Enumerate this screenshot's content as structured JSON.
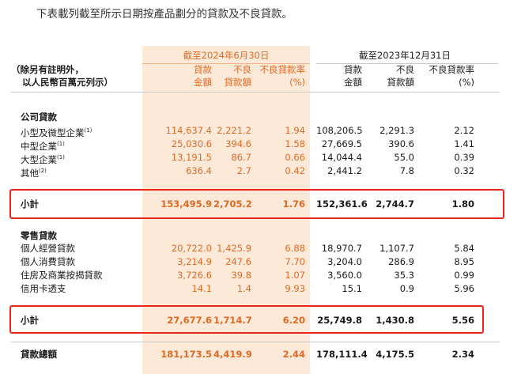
{
  "intro": "下表載列截至所示日期按產品劃分的貸款及不良貸款。",
  "header": {
    "period1": "截至2024年6月30日",
    "period2": "截至2023年12月31日",
    "rowhead_line1": "（除另有註明外，",
    "rowhead_line2": "以人民幣百萬元列示）",
    "col_loan_l1": "貸款",
    "col_loan_l2": "金額",
    "col_npl_l1": "不良",
    "col_npl_l2": "貸款額",
    "col_ratio_l1": "不良貸款率",
    "col_ratio_l2": "(%)",
    "col_loan2": "貸款",
    "col_loan2_b": "金額",
    "col_npl2": "不良",
    "col_npl2_b": "貸款額",
    "col_ratio2": "不良貸款率",
    "col_ratio2_b": "(%)"
  },
  "corporate": {
    "title": "公司貸款",
    "rows": [
      {
        "label": "小型及微型企業",
        "note": "(1)",
        "v": [
          "114,637.4",
          "2,221.2",
          "1.94",
          "108,206.5",
          "2,291.3",
          "2.12"
        ]
      },
      {
        "label": "中型企業",
        "note": "(1)",
        "v": [
          "25,030.6",
          "394.6",
          "1.58",
          "27,669.5",
          "390.6",
          "1.41"
        ]
      },
      {
        "label": "大型企業",
        "note": "(1)",
        "v": [
          "13,191.5",
          "86.7",
          "0.66",
          "14,044.4",
          "55.0",
          "0.39"
        ]
      },
      {
        "label": "其他",
        "note": "(2)",
        "v": [
          "636.4",
          "2.7",
          "0.42",
          "2,441.2",
          "7.8",
          "0.32"
        ]
      }
    ],
    "subtotal": {
      "label": "小計",
      "v": [
        "153,495.9",
        "2,705.2",
        "1.76",
        "152,361.6",
        "2,744.7",
        "1.80"
      ]
    }
  },
  "retail": {
    "title": "零售貸款",
    "rows": [
      {
        "label": "個人經營貸款",
        "v": [
          "20,722.0",
          "1,425.9",
          "6.88",
          "18,970.7",
          "1,107.7",
          "5.84"
        ]
      },
      {
        "label": "個人消費貸款",
        "v": [
          "3,214.9",
          "247.6",
          "7.70",
          "3,204.0",
          "286.9",
          "8.95"
        ]
      },
      {
        "label": "住房及商業按揭貸款",
        "v": [
          "3,726.6",
          "39.8",
          "1.07",
          "3,560.0",
          "35.3",
          "0.99"
        ]
      },
      {
        "label": "信用卡透支",
        "v": [
          "14.1",
          "1.4",
          "9.93",
          "15.1",
          "0.9",
          "5.96"
        ]
      }
    ],
    "subtotal": {
      "label": "小計",
      "v": [
        "27,677.6",
        "1,714.7",
        "6.20",
        "25,749.8",
        "1,430.8",
        "5.56"
      ]
    }
  },
  "total": {
    "label": "貸款總額",
    "v": [
      "181,173.5",
      "4,419.9",
      "2.44",
      "178,111.4",
      "4,175.5",
      "2.34"
    ]
  },
  "colors": {
    "accent": "#e06a25",
    "highlight_band": "#fde9d8",
    "box": "#e8261c"
  }
}
